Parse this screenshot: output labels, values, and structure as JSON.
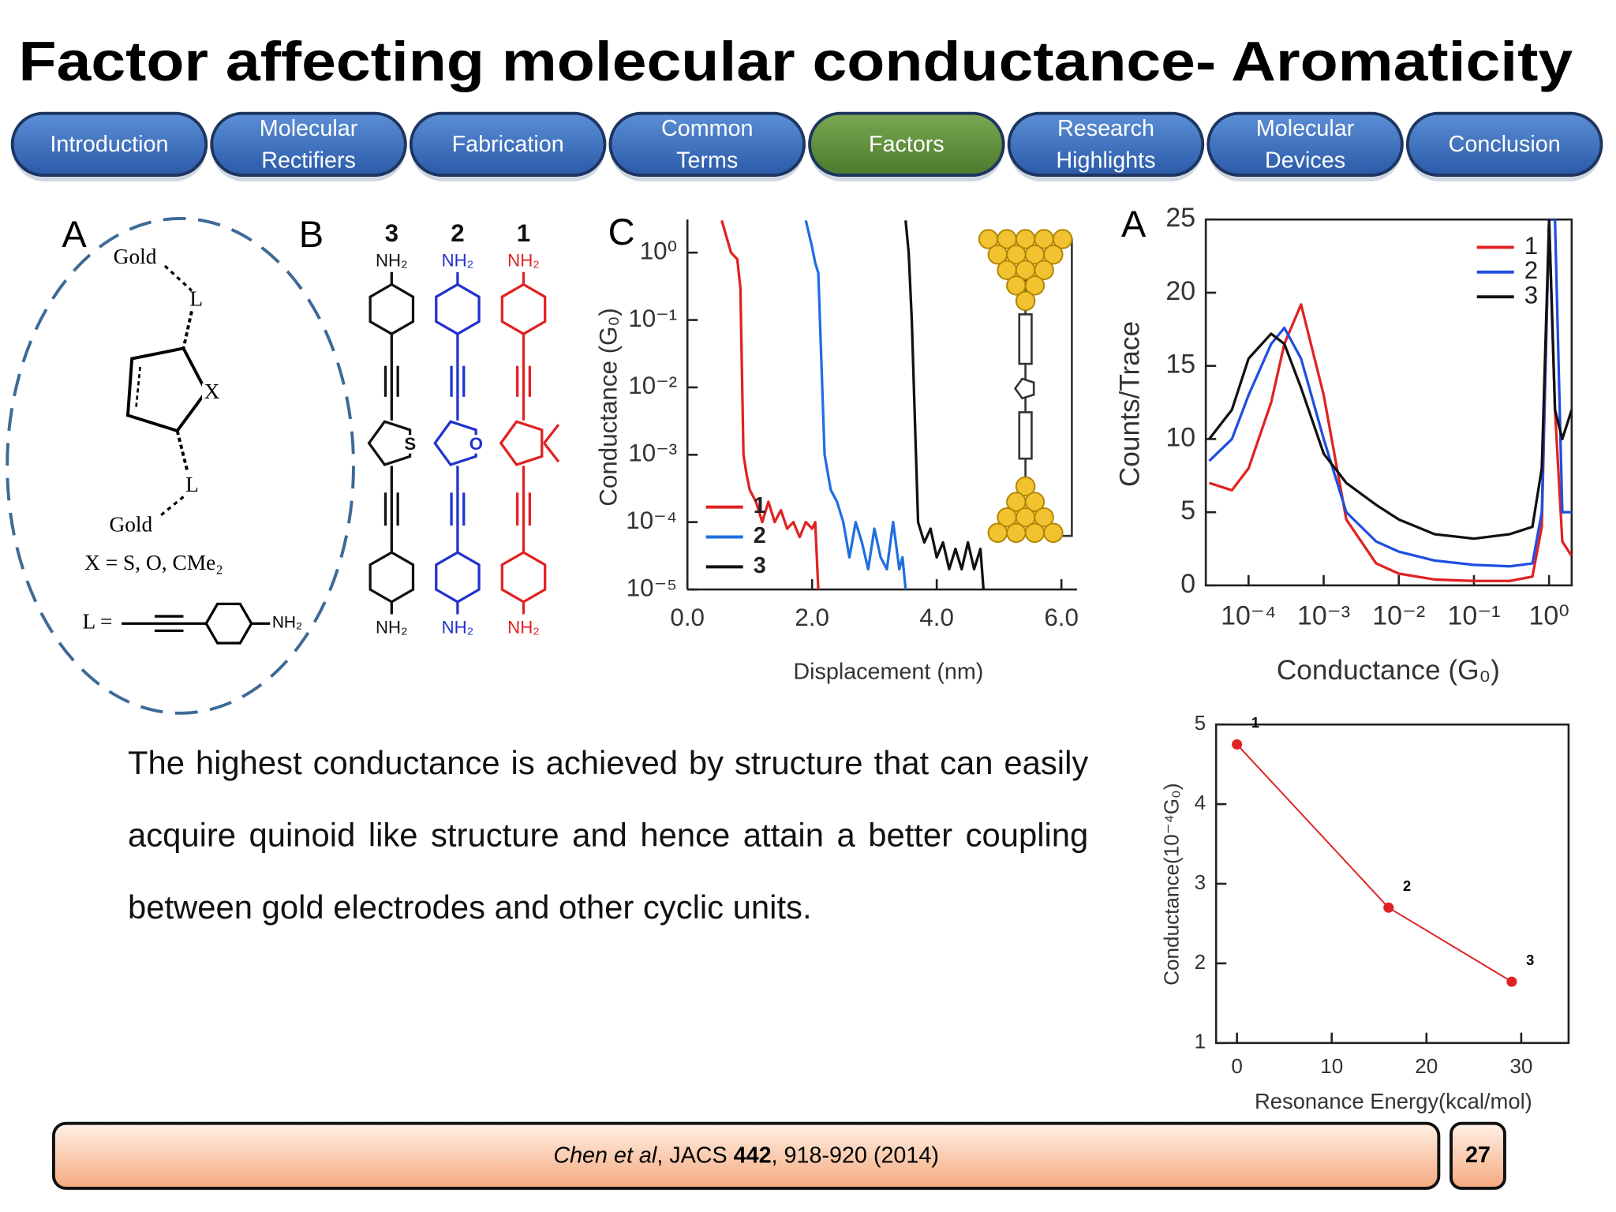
{
  "header": {
    "title": "Factor affecting molecular conductance- Aromaticity"
  },
  "nav": {
    "items": [
      {
        "lines": [
          "Introduction"
        ]
      },
      {
        "lines": [
          "Molecular",
          "Rectifiers"
        ]
      },
      {
        "lines": [
          "Fabrication"
        ]
      },
      {
        "lines": [
          "Common",
          "Terms"
        ]
      },
      {
        "lines": [
          "Factors"
        ],
        "active": true
      },
      {
        "lines": [
          "Research",
          "Highlights"
        ]
      },
      {
        "lines": [
          "Molecular",
          "Devices"
        ]
      },
      {
        "lines": [
          "Conclusion"
        ]
      }
    ]
  },
  "panel_a": {
    "letter": "A",
    "gold_top": "Gold",
    "l_top": "L",
    "x": "X",
    "l_bottom": "L",
    "gold_bottom": "Gold",
    "x_def": "X = S, O, CMe₂",
    "l_def": "L =",
    "nh2": "NH₂"
  },
  "panel_b": {
    "letter": "B",
    "molecules": [
      {
        "number": "3",
        "top": "NH₂",
        "bottom": "NH₂",
        "heteroatom": "S",
        "color": "#111111"
      },
      {
        "number": "2",
        "top": "NH₂",
        "bottom": "NH₂",
        "heteroatom": "O",
        "color": "#2233cc"
      },
      {
        "number": "1",
        "top": "NH₂",
        "bottom": "NH₂",
        "color": "#e02222"
      }
    ]
  },
  "chart_data": [
    {
      "type": "line",
      "panel": "C",
      "xlabel": "Displacement (nm)",
      "ylabel": "Conductance (G₀)",
      "yscale": "log",
      "xlim": [
        0,
        6.25
      ],
      "ylim": [
        1e-05,
        3.1
      ],
      "xticks": [
        {
          "value": 0,
          "label": "0.0"
        },
        {
          "value": 2,
          "label": "2.0"
        },
        {
          "value": 4,
          "label": "4.0"
        },
        {
          "value": 6,
          "label": "6.0"
        }
      ],
      "yticks": [
        {
          "value": 1,
          "label": "10⁰"
        },
        {
          "value": 0.1,
          "label": "10⁻¹"
        },
        {
          "value": 0.01,
          "label": "10⁻²"
        },
        {
          "value": 0.001,
          "label": "10⁻³"
        },
        {
          "value": 0.0001,
          "label": "10⁻⁴"
        },
        {
          "value": 1e-05,
          "label": "10⁻⁵"
        }
      ],
      "legend": "lower left",
      "series": [
        {
          "name": "1",
          "color": "#e02222",
          "x": [
            0.55,
            0.7,
            0.8,
            0.85,
            0.9,
            0.95,
            1.0,
            1.1,
            1.2,
            1.3,
            1.4,
            1.5,
            1.6,
            1.7,
            1.8,
            1.9,
            2.0,
            2.05,
            2.1
          ],
          "values": [
            3,
            1,
            0.8,
            0.3,
            0.001,
            0.0005,
            0.0003,
            0.0002,
            0.0001,
            0.0002,
            0.0001,
            0.00015,
            8e-05,
            0.0001,
            6e-05,
            0.0001,
            8e-05,
            0.0001,
            1e-05
          ]
        },
        {
          "name": "2",
          "color": "#1f6fe0",
          "x": [
            1.9,
            2.0,
            2.05,
            2.1,
            2.2,
            2.3,
            2.4,
            2.5,
            2.6,
            2.7,
            2.8,
            2.9,
            3.0,
            3.1,
            3.2,
            3.3,
            3.4,
            3.45,
            3.5
          ],
          "values": [
            3,
            1.2,
            0.7,
            0.5,
            0.001,
            0.0003,
            0.0002,
            0.0001,
            3e-05,
            0.0001,
            5e-05,
            2e-05,
            8e-05,
            3e-05,
            2e-05,
            0.0001,
            2e-05,
            3e-05,
            1e-05
          ]
        },
        {
          "name": "3",
          "color": "#111111",
          "x": [
            3.5,
            3.55,
            3.6,
            3.7,
            3.8,
            3.9,
            4.0,
            4.1,
            4.2,
            4.3,
            4.4,
            4.5,
            4.6,
            4.7,
            4.75
          ],
          "values": [
            3,
            1,
            0.1,
            0.0001,
            5e-05,
            8e-05,
            3e-05,
            5e-05,
            2e-05,
            4e-05,
            2e-05,
            5e-05,
            2e-05,
            4e-05,
            1e-05
          ]
        }
      ]
    },
    {
      "type": "line",
      "panel": "A",
      "xlabel": "Conductance (G₀)",
      "ylabel": "Counts/Trace",
      "xscale": "log",
      "xlim": [
        2.7e-05,
        2
      ],
      "ylim": [
        0,
        25
      ],
      "xticks": [
        {
          "value": 0.0001,
          "label": "10⁻⁴"
        },
        {
          "value": 0.001,
          "label": "10⁻³"
        },
        {
          "value": 0.01,
          "label": "10⁻²"
        },
        {
          "value": 0.1,
          "label": "10⁻¹"
        },
        {
          "value": 1,
          "label": "10⁰"
        }
      ],
      "yticks": [
        0,
        5,
        10,
        15,
        20,
        25
      ],
      "legend": "upper right",
      "series": [
        {
          "name": "1",
          "color": "#e02222",
          "x": [
            3e-05,
            6e-05,
            0.0001,
            0.0002,
            0.0003,
            0.0005,
            0.001,
            0.002,
            0.005,
            0.01,
            0.03,
            0.1,
            0.3,
            0.6,
            0.8,
            1,
            1.2,
            1.5,
            2
          ],
          "values": [
            7,
            6.5,
            8,
            12.5,
            16.5,
            19.2,
            13,
            4.5,
            1.5,
            0.8,
            0.4,
            0.3,
            0.3,
            0.6,
            4,
            25,
            12,
            3,
            2
          ]
        },
        {
          "name": "2",
          "color": "#1f4fe0",
          "x": [
            3e-05,
            6e-05,
            0.0001,
            0.0002,
            0.0003,
            0.0005,
            0.001,
            0.002,
            0.005,
            0.01,
            0.03,
            0.1,
            0.3,
            0.6,
            0.8,
            1,
            1.2,
            1.5,
            2
          ],
          "values": [
            8.5,
            10,
            13,
            16.5,
            17.6,
            15.5,
            10,
            5,
            3,
            2.3,
            1.7,
            1.4,
            1.3,
            1.5,
            5,
            25,
            25,
            5,
            5
          ]
        },
        {
          "name": "3",
          "color": "#111111",
          "x": [
            3e-05,
            6e-05,
            0.0001,
            0.0002,
            0.0003,
            0.0005,
            0.001,
            0.002,
            0.005,
            0.01,
            0.03,
            0.1,
            0.3,
            0.6,
            0.8,
            1,
            1.2,
            1.5,
            2
          ],
          "values": [
            10,
            12,
            15.5,
            17.2,
            16.5,
            13.5,
            9,
            7,
            5.5,
            4.5,
            3.5,
            3.2,
            3.5,
            4,
            8,
            25,
            12,
            10,
            12
          ]
        }
      ]
    },
    {
      "type": "line",
      "xlabel": "Resonance Energy(kcal/mol)",
      "ylabel": "Conductance(10⁻⁴G₀)",
      "xlim": [
        -2.2,
        35
      ],
      "ylim": [
        1,
        5
      ],
      "xticks": [
        0,
        10,
        20,
        30
      ],
      "yticks": [
        1,
        2,
        3,
        4,
        5
      ],
      "markers": true,
      "series": [
        {
          "color": "#e02222",
          "x": [
            0,
            16,
            29
          ],
          "values": [
            4.75,
            2.7,
            1.77
          ]
        }
      ],
      "point_labels": [
        "1",
        "2",
        "3"
      ]
    }
  ],
  "body": {
    "text": "The highest conductance is achieved by structure that can easily acquire quinoid like structure and hence attain a better coupling between gold electrodes and other cyclic units."
  },
  "footer": {
    "citation": {
      "authors": "Chen et al",
      "journal": ", JACS ",
      "volume": "442",
      "pages": ", 918-920 (2014)"
    },
    "page": "27"
  }
}
